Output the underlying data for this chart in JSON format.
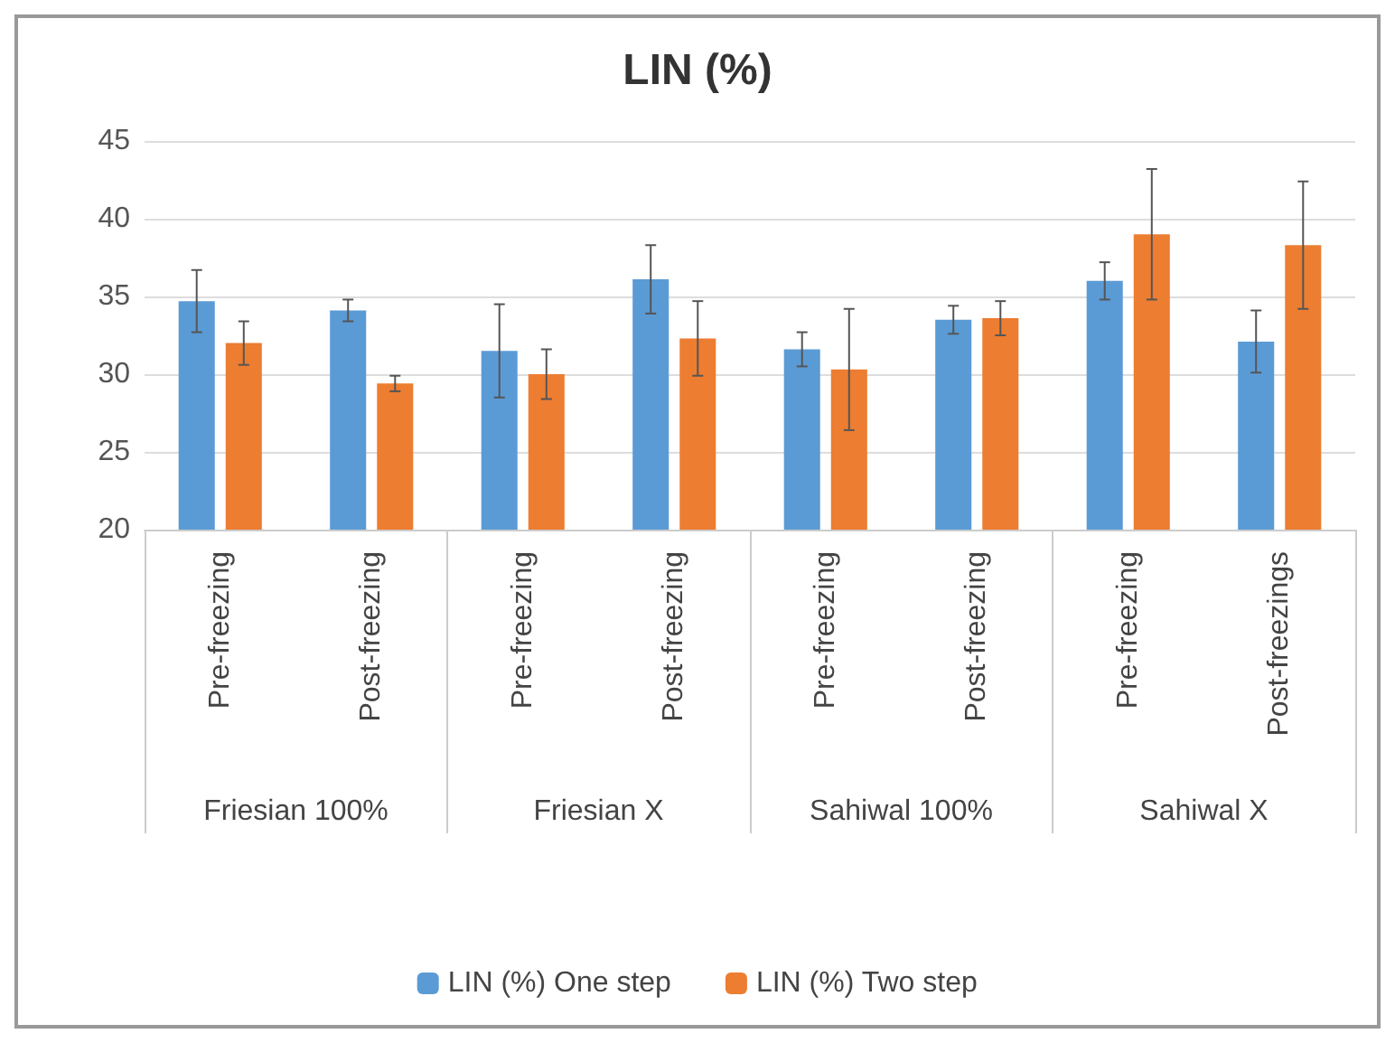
{
  "chart_data": {
    "type": "bar",
    "title": "LIN (%)",
    "categories": [
      "Pre-freezing",
      "Post-freezing",
      "Pre-freezing",
      "Post-freezing",
      "Pre-freezing",
      "Post-freezing",
      "Pre-freezing",
      "Post-freezings"
    ],
    "annotations": [
      "Friesian 100%",
      "Friesian X",
      "Sahiwal 100%",
      "Sahiwal X"
    ],
    "series": [
      {
        "name": "LIN (%) One step",
        "color": "#5b9bd5",
        "values": [
          34.7,
          34.1,
          31.5,
          36.1,
          31.6,
          33.5,
          36.0,
          32.1
        ],
        "errors": [
          2.0,
          0.7,
          3.0,
          2.2,
          1.1,
          0.9,
          1.2,
          2.0
        ]
      },
      {
        "name": "LIN (%) Two step",
        "color": "#ed7d31",
        "values": [
          32.0,
          29.4,
          30.0,
          32.3,
          30.3,
          33.6,
          39.0,
          38.3
        ],
        "errors": [
          1.4,
          0.5,
          1.6,
          2.4,
          3.9,
          1.1,
          4.2,
          4.1
        ]
      }
    ],
    "ylim": [
      20,
      45
    ],
    "yticks": [
      20,
      25,
      30,
      35,
      40,
      45
    ],
    "grid": "y",
    "legend": "bottom"
  }
}
